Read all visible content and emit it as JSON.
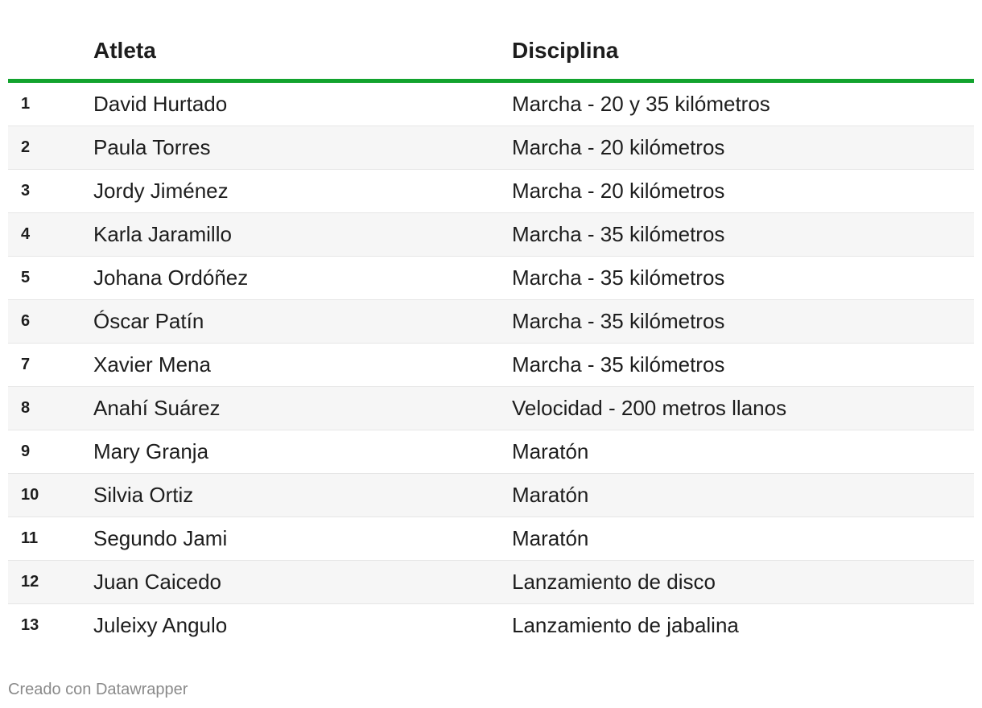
{
  "table": {
    "headers": {
      "number": "",
      "athlete": "Atleta",
      "discipline": "Disciplina"
    },
    "rows": [
      {
        "number": "1",
        "athlete": "David Hurtado",
        "discipline": "Marcha - 20 y 35 kilómetros"
      },
      {
        "number": "2",
        "athlete": "Paula Torres",
        "discipline": "Marcha - 20 kilómetros"
      },
      {
        "number": "3",
        "athlete": "Jordy Jiménez",
        "discipline": "Marcha - 20 kilómetros"
      },
      {
        "number": "4",
        "athlete": "Karla Jaramillo",
        "discipline": "Marcha - 35 kilómetros"
      },
      {
        "number": "5",
        "athlete": "Johana Ordóñez",
        "discipline": "Marcha - 35 kilómetros"
      },
      {
        "number": "6",
        "athlete": "Óscar Patín",
        "discipline": "Marcha - 35 kilómetros"
      },
      {
        "number": "7",
        "athlete": "Xavier Mena",
        "discipline": "Marcha - 35 kilómetros"
      },
      {
        "number": "8",
        "athlete": "Anahí Suárez",
        "discipline": "Velocidad - 200 metros llanos"
      },
      {
        "number": "9",
        "athlete": "Mary Granja",
        "discipline": "Maratón"
      },
      {
        "number": "10",
        "athlete": "Silvia Ortiz",
        "discipline": "Maratón"
      },
      {
        "number": "11",
        "athlete": "Segundo Jami",
        "discipline": "Maratón"
      },
      {
        "number": "12",
        "athlete": "Juan Caicedo",
        "discipline": "Lanzamiento de disco"
      },
      {
        "number": "13",
        "athlete": "Juleixy Angulo",
        "discipline": "Lanzamiento de jabalina"
      }
    ]
  },
  "footer": {
    "credit": "Creado con Datawrapper"
  },
  "colors": {
    "header_rule": "#12a32e",
    "alt_row": "#f6f6f6",
    "footer_text": "#8a8a8a"
  }
}
